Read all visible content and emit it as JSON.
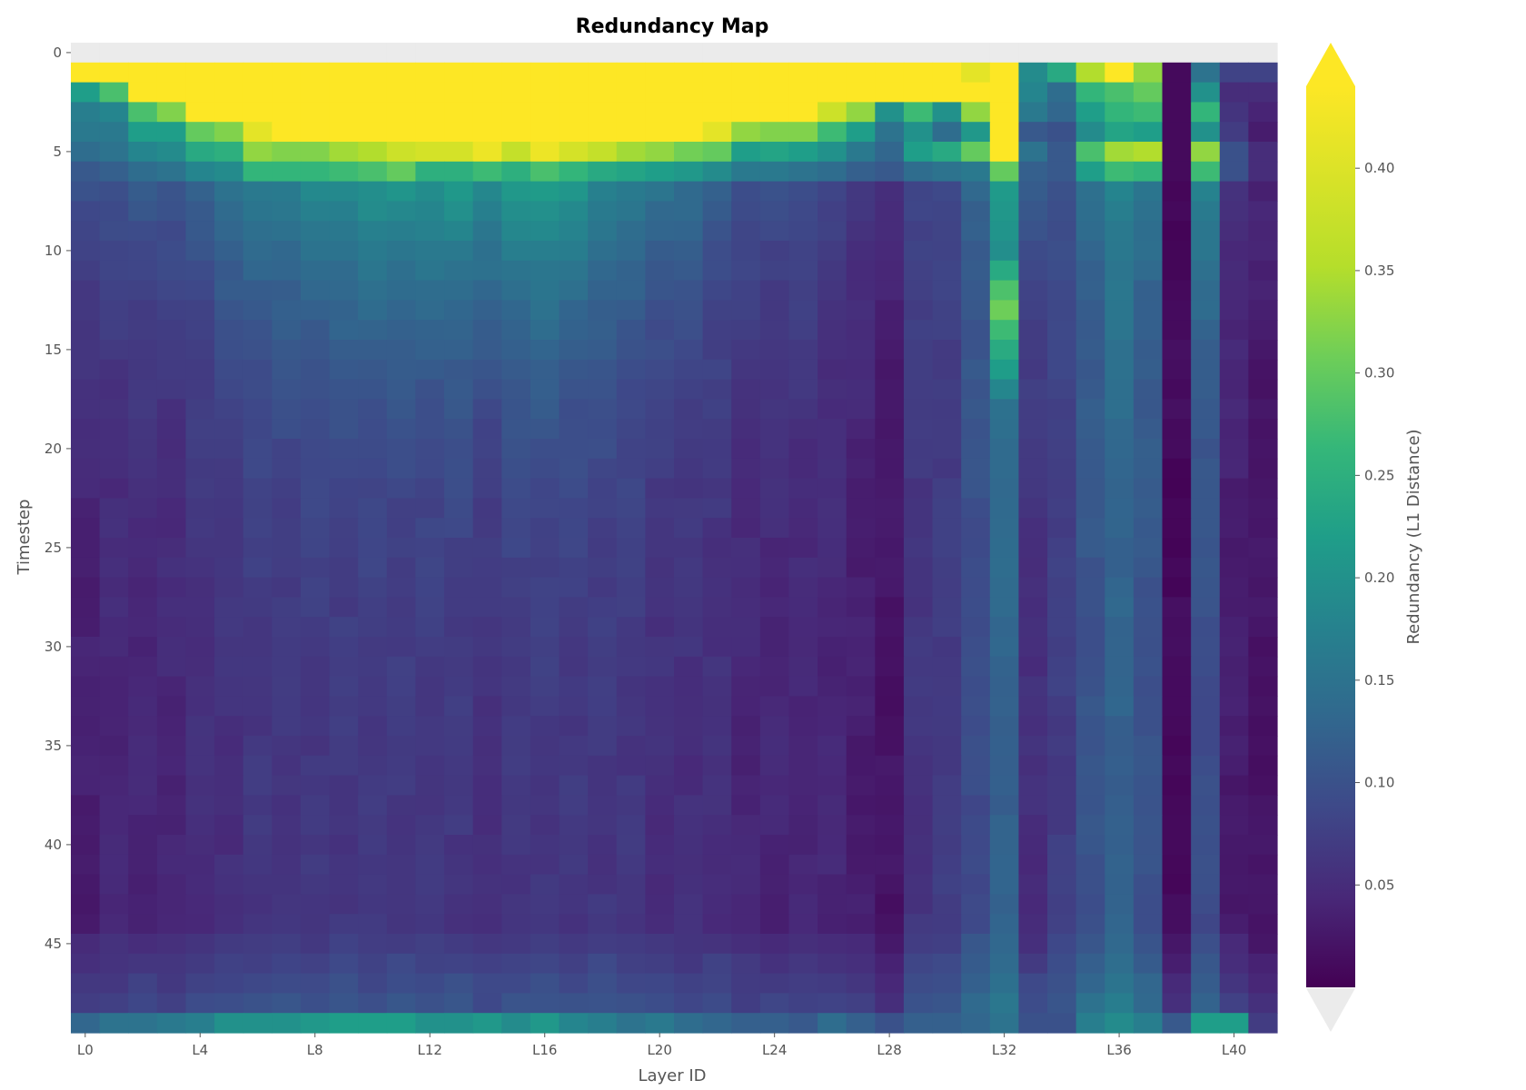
{
  "chart_data": {
    "type": "heatmap",
    "title": "Redundancy Map",
    "xlabel": "Layer ID",
    "ylabel": "Timestep",
    "colorbar_label": "Redundancy (L1 Distance)",
    "colormap": "viridis",
    "extend": "both",
    "over_color": "#fde725",
    "under_color": "#ebebeb",
    "vmin": 0.0,
    "vmax": 0.44,
    "n_layers": 42,
    "n_timesteps": 50,
    "x_tick_labels": [
      "L0",
      "L4",
      "L8",
      "L12",
      "L16",
      "L20",
      "L24",
      "L28",
      "L32",
      "L36",
      "L40"
    ],
    "x_tick_layers": [
      0,
      4,
      8,
      12,
      16,
      20,
      24,
      28,
      32,
      36,
      40
    ],
    "y_tick_labels": [
      "0",
      "5",
      "10",
      "15",
      "20",
      "25",
      "30",
      "35",
      "40",
      "45"
    ],
    "y_tick_timesteps": [
      0,
      5,
      10,
      15,
      20,
      25,
      30,
      35,
      40,
      45
    ],
    "colorbar_ticks": [
      0.05,
      0.1,
      0.15,
      0.2,
      0.25,
      0.3,
      0.35,
      0.4
    ],
    "colorbar_tick_labels": [
      "0.05",
      "0.10",
      "0.15",
      "0.20",
      "0.25",
      "0.30",
      "0.35",
      "0.40"
    ],
    "row0_masked": true,
    "row_values": {
      "1": [
        1,
        1,
        1,
        1,
        1,
        1,
        1,
        1,
        1,
        1,
        1,
        1,
        1,
        1,
        1,
        1,
        1,
        1,
        1,
        1,
        1,
        1,
        1,
        1,
        1,
        1,
        1,
        1,
        1,
        1,
        1,
        0.41,
        0.9,
        0.19,
        0.24,
        0.35,
        0.9,
        0.33,
        0.01,
        0.15,
        0.08,
        0.08
      ],
      "2": [
        0.22,
        0.28,
        1,
        1,
        1,
        1,
        1,
        1,
        1,
        1,
        1,
        1,
        1,
        1,
        1,
        1,
        1,
        1,
        1,
        1,
        1,
        1,
        1,
        1,
        1,
        1,
        1,
        1,
        1,
        1,
        1,
        1,
        0.9,
        0.18,
        0.14,
        0.26,
        0.28,
        0.3,
        0.01,
        0.2,
        0.05,
        0.05
      ],
      "3": [
        0.17,
        0.18,
        0.28,
        0.32,
        1,
        1,
        1,
        1,
        1,
        1,
        1,
        1,
        1,
        1,
        1,
        1,
        1,
        1,
        1,
        1,
        1,
        1,
        1,
        1,
        1,
        1,
        0.38,
        0.33,
        0.2,
        0.27,
        0.2,
        0.33,
        0.9,
        0.16,
        0.13,
        0.22,
        0.26,
        0.27,
        0.01,
        0.26,
        0.06,
        0.04
      ],
      "4": [
        0.16,
        0.16,
        0.22,
        0.22,
        0.3,
        0.32,
        0.41,
        1,
        1,
        1,
        1,
        1,
        1,
        1,
        1,
        1,
        1,
        1,
        1,
        1,
        1,
        1,
        0.41,
        0.33,
        0.32,
        0.32,
        0.27,
        0.22,
        0.15,
        0.2,
        0.14,
        0.21,
        0.9,
        0.11,
        0.1,
        0.19,
        0.23,
        0.22,
        0.01,
        0.2,
        0.07,
        0.03
      ],
      "5": [
        0.14,
        0.15,
        0.18,
        0.19,
        0.24,
        0.25,
        0.33,
        0.32,
        0.32,
        0.34,
        0.35,
        0.38,
        0.39,
        0.39,
        0.42,
        0.37,
        0.42,
        0.39,
        0.37,
        0.34,
        0.33,
        0.31,
        0.3,
        0.22,
        0.23,
        0.22,
        0.2,
        0.16,
        0.13,
        0.22,
        0.24,
        0.3,
        0.9,
        0.15,
        0.11,
        0.28,
        0.34,
        0.35,
        0.01,
        0.33,
        0.1,
        0.05
      ],
      "6": [
        0.11,
        0.12,
        0.14,
        0.15,
        0.18,
        0.19,
        0.26,
        0.26,
        0.26,
        0.27,
        0.28,
        0.3,
        0.25,
        0.25,
        0.27,
        0.25,
        0.28,
        0.26,
        0.24,
        0.23,
        0.22,
        0.21,
        0.19,
        0.16,
        0.16,
        0.15,
        0.14,
        0.12,
        0.11,
        0.14,
        0.15,
        0.16,
        0.3,
        0.12,
        0.11,
        0.22,
        0.27,
        0.26,
        0.01,
        0.27,
        0.1,
        0.05
      ]
    },
    "col_base": [
      0.03,
      0.04,
      0.04,
      0.04,
      0.05,
      0.05,
      0.06,
      0.06,
      0.06,
      0.06,
      0.06,
      0.06,
      0.06,
      0.06,
      0.05,
      0.06,
      0.06,
      0.06,
      0.06,
      0.06,
      0.05,
      0.05,
      0.05,
      0.04,
      0.04,
      0.04,
      0.04,
      0.03,
      0.02,
      0.06,
      0.07,
      0.09,
      0.12,
      0.05,
      0.07,
      0.1,
      0.12,
      0.1,
      0.01,
      0.09,
      0.03,
      0.02
    ],
    "col_peak": [
      0.1,
      0.1,
      0.11,
      0.11,
      0.12,
      0.15,
      0.16,
      0.17,
      0.18,
      0.19,
      0.2,
      0.2,
      0.2,
      0.21,
      0.19,
      0.21,
      0.22,
      0.2,
      0.18,
      0.16,
      0.15,
      0.14,
      0.12,
      0.1,
      0.1,
      0.1,
      0.08,
      0.07,
      0.05,
      0.09,
      0.08,
      0.13,
      0.22,
      0.11,
      0.1,
      0.14,
      0.18,
      0.15,
      0.01,
      0.17,
      0.06,
      0.04
    ],
    "bump_timesteps": [
      11,
      12,
      13,
      14,
      15,
      16,
      17
    ],
    "bump_layer": 32,
    "bump_values": [
      0.24,
      0.28,
      0.3,
      0.27,
      0.24,
      0.22,
      0.19
    ],
    "last_row_values": [
      0.13,
      0.15,
      0.15,
      0.16,
      0.17,
      0.2,
      0.2,
      0.2,
      0.21,
      0.22,
      0.22,
      0.22,
      0.2,
      0.2,
      0.21,
      0.19,
      0.21,
      0.18,
      0.17,
      0.15,
      0.16,
      0.14,
      0.13,
      0.12,
      0.12,
      0.11,
      0.14,
      0.12,
      0.1,
      0.12,
      0.12,
      0.13,
      0.15,
      0.1,
      0.1,
      0.17,
      0.19,
      0.17,
      0.11,
      0.22,
      0.22,
      0.07
    ]
  }
}
